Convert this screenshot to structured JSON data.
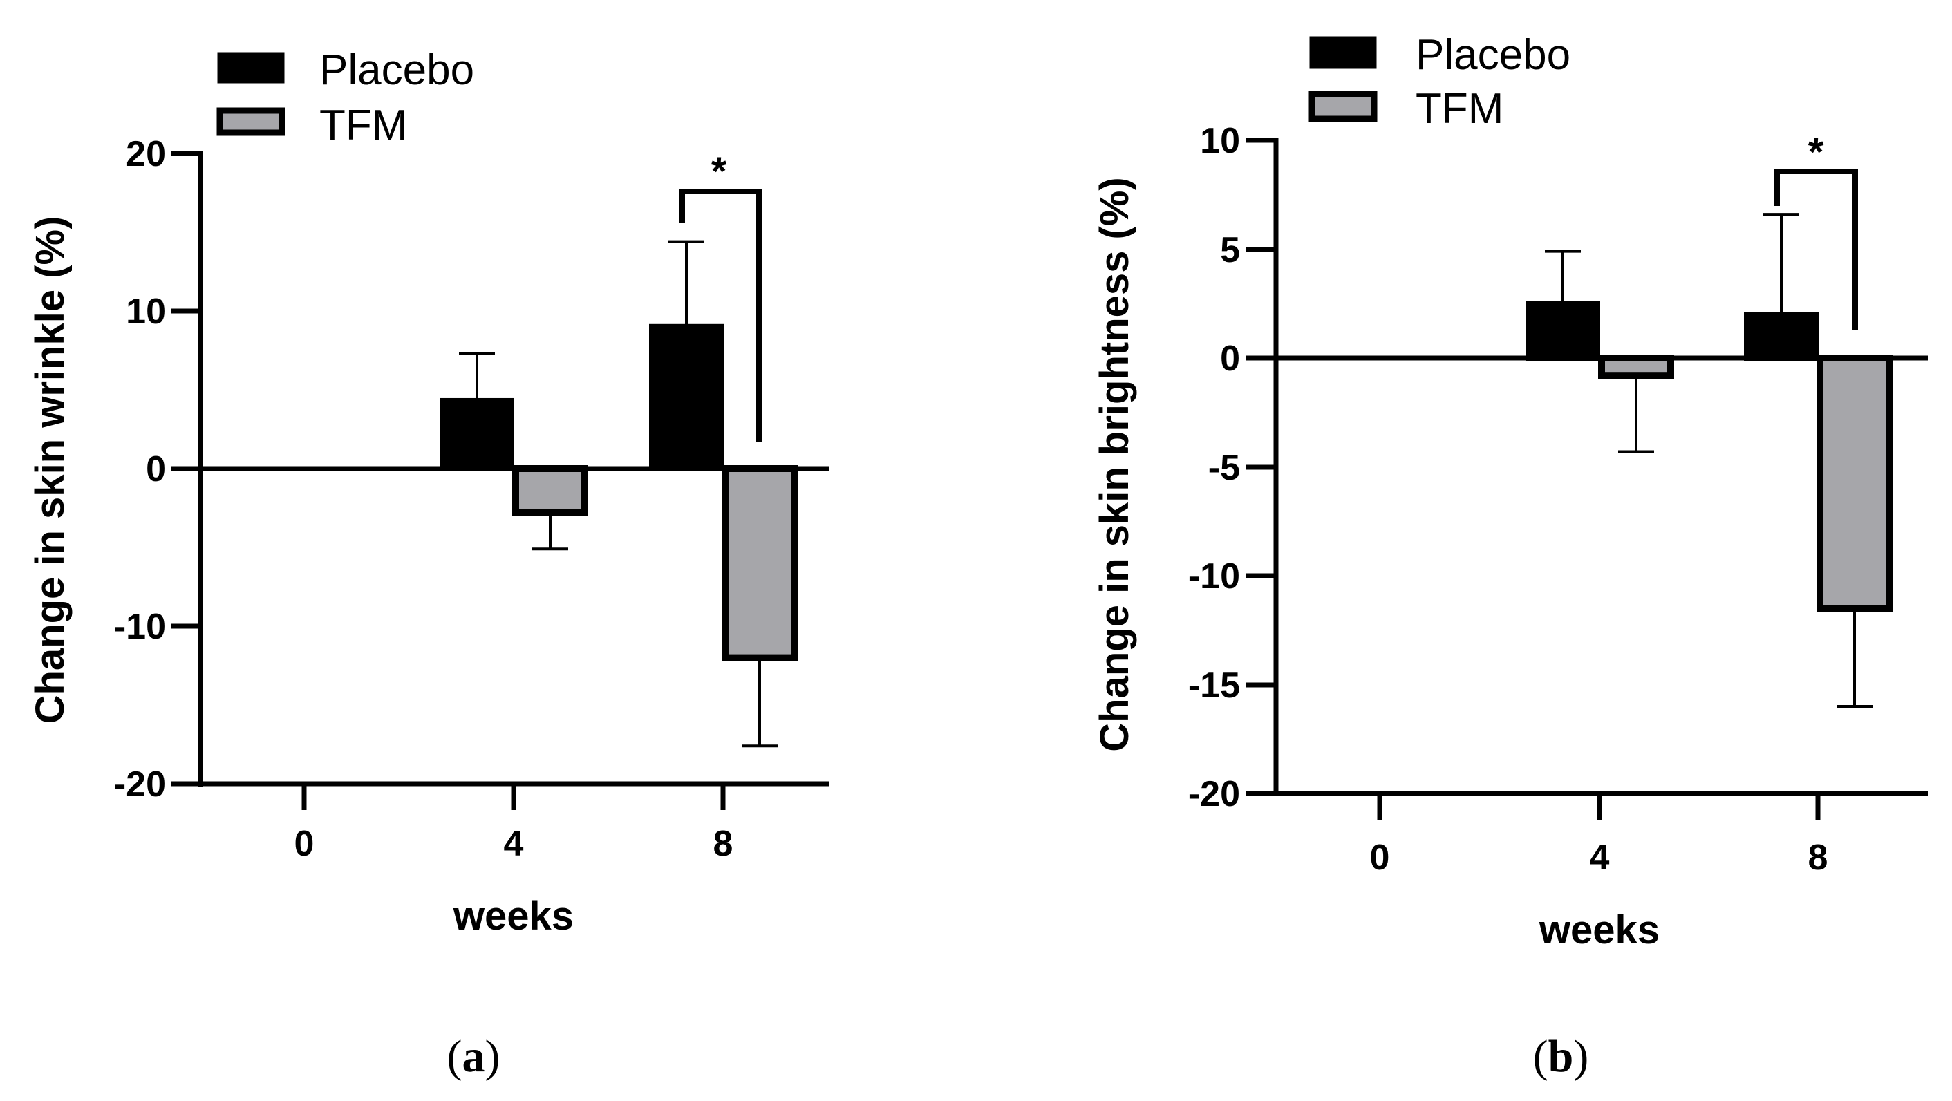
{
  "chart_data": [
    {
      "type": "bar",
      "panel_label": "a",
      "xlabel": "weeks",
      "ylabel": "Change in skin wrinkle (%)",
      "categories": [
        "0",
        "4",
        "8"
      ],
      "ylim": [
        -20,
        20
      ],
      "yticks": [
        20,
        10,
        0,
        -10,
        -20
      ],
      "series": [
        {
          "name": "Placebo",
          "color": "#000000",
          "values": [
            0,
            4.3,
            9.0
          ],
          "errors": [
            0,
            3.0,
            5.4
          ]
        },
        {
          "name": "TFM",
          "color": "#a6a6aa",
          "values": [
            0,
            -2.8,
            -12.0
          ],
          "errors": [
            0,
            2.3,
            5.6
          ]
        }
      ],
      "legend": {
        "placement": "top-left",
        "entries": [
          "Placebo",
          "TFM"
        ]
      },
      "annotation": {
        "text": "*",
        "category": "8"
      }
    },
    {
      "type": "bar",
      "panel_label": "b",
      "xlabel": "weeks",
      "ylabel": "Change in skin brightness (%)",
      "categories": [
        "0",
        "4",
        "8"
      ],
      "ylim": [
        -20,
        10
      ],
      "yticks": [
        10,
        5,
        0,
        -5,
        -10,
        -15,
        -20
      ],
      "series": [
        {
          "name": "Placebo",
          "color": "#000000",
          "values": [
            0,
            2.5,
            2.0
          ],
          "errors": [
            0,
            2.4,
            4.6
          ]
        },
        {
          "name": "TFM",
          "color": "#a6a6aa",
          "values": [
            0,
            -0.8,
            -11.5
          ],
          "errors": [
            0,
            3.5,
            4.5
          ]
        }
      ],
      "legend": {
        "placement": "top-left",
        "entries": [
          "Placebo",
          "TFM"
        ]
      },
      "annotation": {
        "text": "*",
        "category": "8"
      }
    }
  ]
}
